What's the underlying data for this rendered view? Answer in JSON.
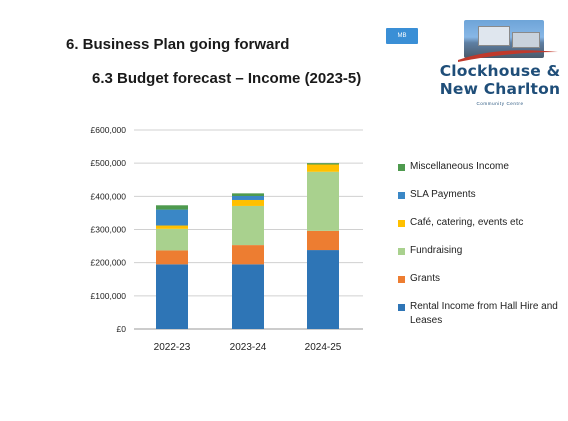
{
  "header": {
    "title": "6. Business Plan going forward",
    "subtitle": "6.3 Budget forecast – Income (2023-5)",
    "tag": "MB"
  },
  "logo": {
    "line1": "Clockhouse &",
    "line2": "New Charlton",
    "sub": "Community Centre"
  },
  "chart_data": {
    "type": "bar",
    "stacked": true,
    "categories": [
      "2022-23",
      "2023-24",
      "2024-25"
    ],
    "series": [
      {
        "name": "Rental Income from Hall Hire and Leases",
        "color": "#2e75b6",
        "values": [
          195000,
          195000,
          238000
        ]
      },
      {
        "name": "Grants",
        "color": "#ed7d31",
        "values": [
          42000,
          58000,
          58000
        ]
      },
      {
        "name": "Fundraising",
        "color": "#a9d18e",
        "values": [
          65000,
          118000,
          178000
        ]
      },
      {
        "name": "Café, catering, events etc",
        "color": "#ffc000",
        "values": [
          10000,
          18000,
          22000
        ]
      },
      {
        "name": "SLA Payments",
        "color": "#3a87c6",
        "values": [
          48000,
          12000,
          0
        ]
      },
      {
        "name": "Miscellaneous Income",
        "color": "#4e9a4e",
        "values": [
          13000,
          8000,
          4000
        ]
      }
    ],
    "yticks": [
      "£0",
      "£100,000",
      "£200,000",
      "£300,000",
      "£400,000",
      "£500,000",
      "£600,000"
    ],
    "ylim": [
      0,
      600000
    ],
    "grid": true,
    "legend_position": "right"
  }
}
